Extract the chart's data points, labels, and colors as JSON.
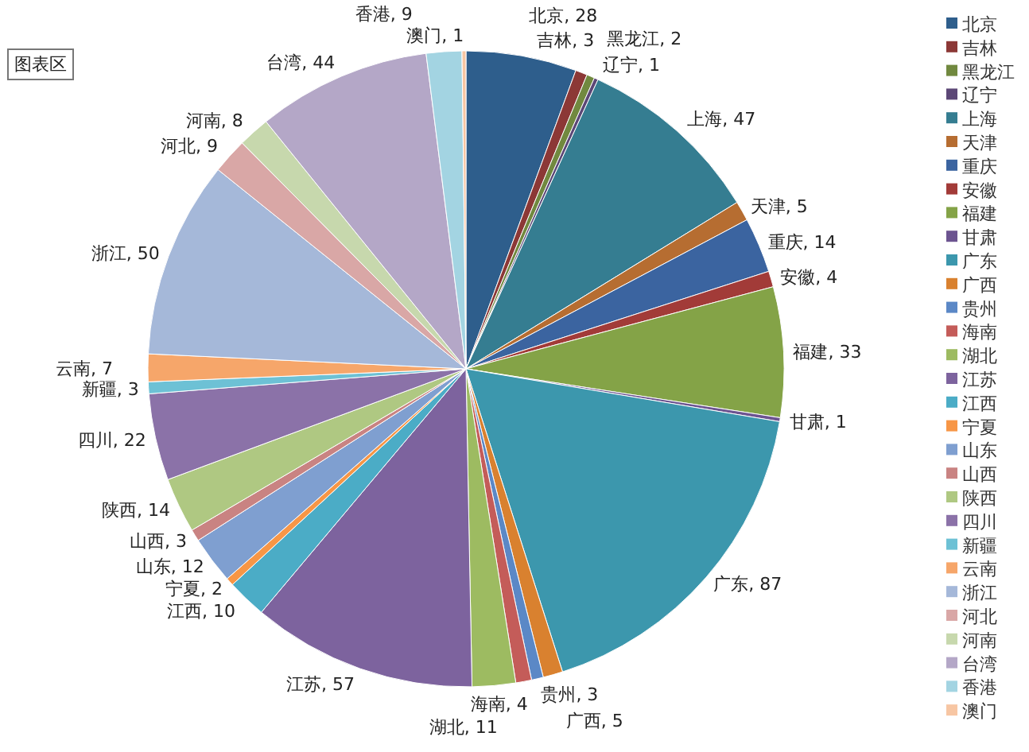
{
  "chart_data": {
    "type": "pie",
    "categories": [
      "北京",
      "吉林",
      "黑龙江",
      "辽宁",
      "上海",
      "天津",
      "重庆",
      "安徽",
      "福建",
      "甘肃",
      "广东",
      "广西",
      "贵州",
      "海南",
      "湖北",
      "江苏",
      "江西",
      "宁夏",
      "山东",
      "山西",
      "陕西",
      "四川",
      "新疆",
      "云南",
      "浙江",
      "河北",
      "河南",
      "台湾",
      "香港",
      "澳门"
    ],
    "values": [
      28,
      3,
      2,
      1,
      47,
      5,
      14,
      4,
      33,
      1,
      87,
      5,
      3,
      4,
      11,
      57,
      10,
      2,
      12,
      3,
      14,
      22,
      3,
      7,
      50,
      9,
      8,
      44,
      9,
      1
    ],
    "colors": [
      "#2e5e8c",
      "#8c3836",
      "#71893f",
      "#5c4776",
      "#357d91",
      "#b66d31",
      "#3b64a0",
      "#a23b38",
      "#84a347",
      "#6c5490",
      "#3c97ad",
      "#d9812f",
      "#5b88c6",
      "#c45c59",
      "#9dbb61",
      "#7d639e",
      "#4bacc6",
      "#f79646",
      "#7f9fd0",
      "#c98382",
      "#afc882",
      "#8b72a8",
      "#6dc1d5",
      "#f6a66a",
      "#a5b8d9",
      "#d9a7a6",
      "#c7d8ad",
      "#b4a7c7",
      "#a3d4e2",
      "#f7c6a3"
    ],
    "value_labels": [
      ", 28",
      ", 3",
      ", 2",
      ", 1",
      ", 47",
      ", 5",
      ", 14",
      ", 4",
      ", 33",
      ", 1",
      ", 87",
      ", 5",
      ", 3",
      ", 4",
      ", 11",
      ", 57",
      ", 10",
      ", 2",
      ", 12",
      ", 3",
      ", 14",
      ", 22",
      ", 3",
      ", 7",
      ", 50",
      ", 9",
      ", 8",
      ", 44",
      ", 9",
      ", 1"
    ],
    "legend": "right",
    "annotations": [
      "图表区"
    ]
  }
}
